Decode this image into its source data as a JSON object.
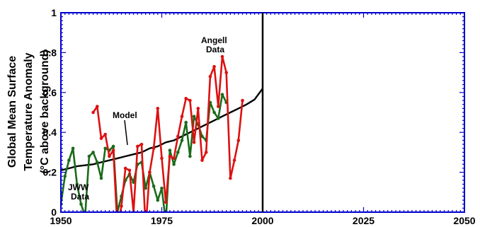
{
  "chart_data": {
    "type": "line",
    "title": "",
    "xlabel": "",
    "ylabel_lines": [
      "Global Mean Surface",
      "Temperature Anomaly",
      "(°C above background)"
    ],
    "xlim": [
      1950,
      2050
    ],
    "ylim": [
      0,
      1
    ],
    "x_ticks": [
      1950,
      1975,
      2000,
      2025,
      2050
    ],
    "y_ticks": [
      0,
      0.2,
      0.4,
      0.6,
      0.8,
      1
    ],
    "y_tick_labels": [
      "0",
      "0.2",
      "0.4",
      "0.6",
      "0.8",
      "1"
    ],
    "grid": false,
    "vertical_marker_year": 2000,
    "axis_color": "#0000cc",
    "series": [
      {
        "key": "model",
        "color": "#000000",
        "markers": false,
        "x": [
          1950,
          1952,
          1954,
          1956,
          1958,
          1960,
          1962,
          1964,
          1966,
          1968,
          1970,
          1972,
          1974,
          1976,
          1978,
          1980,
          1982,
          1984,
          1986,
          1988,
          1990,
          1992,
          1994,
          1996,
          1998,
          2000
        ],
        "values": [
          0.21,
          0.22,
          0.23,
          0.235,
          0.24,
          0.25,
          0.26,
          0.27,
          0.28,
          0.29,
          0.3,
          0.32,
          0.33,
          0.35,
          0.36,
          0.38,
          0.4,
          0.42,
          0.44,
          0.46,
          0.48,
          0.5,
          0.52,
          0.54,
          0.565,
          0.62
        ]
      },
      {
        "key": "jww",
        "color": "#1a6b1a",
        "markers": true,
        "x": [
          1950,
          1951,
          1952,
          1953,
          1954,
          1955,
          1956,
          1957,
          1958,
          1959,
          1960,
          1961,
          1962,
          1963,
          1964,
          1965,
          1966,
          1967,
          1968,
          1969,
          1970,
          1971,
          1972,
          1973,
          1974,
          1975,
          1976,
          1977,
          1978,
          1979,
          1980,
          1981,
          1982,
          1983,
          1984,
          1985,
          1986,
          1987,
          1988,
          1989,
          1990,
          1991
        ],
        "values": [
          0.04,
          0.18,
          0.26,
          0.32,
          0.14,
          0.04,
          -0.02,
          0.28,
          0.3,
          0.25,
          0.17,
          0.32,
          0.31,
          0.33,
          0.0,
          0.08,
          0.16,
          0.19,
          0.15,
          0.24,
          0.25,
          0.12,
          0.2,
          0.13,
          0.06,
          0.12,
          -0.05,
          0.31,
          0.24,
          0.3,
          0.36,
          0.45,
          0.28,
          0.48,
          0.44,
          0.38,
          0.36,
          0.55,
          0.5,
          0.47,
          0.59,
          0.55
        ]
      },
      {
        "key": "angell",
        "color": "#dd1111",
        "markers": true,
        "x": [
          1958,
          1959,
          1960,
          1961,
          1962,
          1963,
          1964,
          1965,
          1966,
          1967,
          1968,
          1969,
          1970,
          1971,
          1972,
          1973,
          1974,
          1975,
          1976,
          1977,
          1978,
          1979,
          1980,
          1981,
          1982,
          1983,
          1984,
          1985,
          1986,
          1987,
          1988,
          1989,
          1990,
          1991,
          1992,
          1993,
          1994,
          1995
        ],
        "values": [
          0.5,
          0.53,
          0.37,
          0.39,
          0.28,
          0.31,
          -0.08,
          0.03,
          0.22,
          0.21,
          0.0,
          0.33,
          0.34,
          -0.08,
          0.2,
          0.32,
          0.52,
          0.27,
          0.05,
          0.28,
          0.27,
          0.38,
          0.48,
          0.57,
          0.56,
          0.35,
          0.52,
          0.26,
          0.3,
          0.68,
          0.73,
          0.53,
          0.78,
          0.7,
          0.17,
          0.26,
          0.36,
          0.56
        ]
      }
    ],
    "annotations": {
      "model": "Model",
      "angell": [
        "Angell",
        "Data"
      ],
      "jww": [
        "JWW",
        "Data"
      ]
    }
  }
}
